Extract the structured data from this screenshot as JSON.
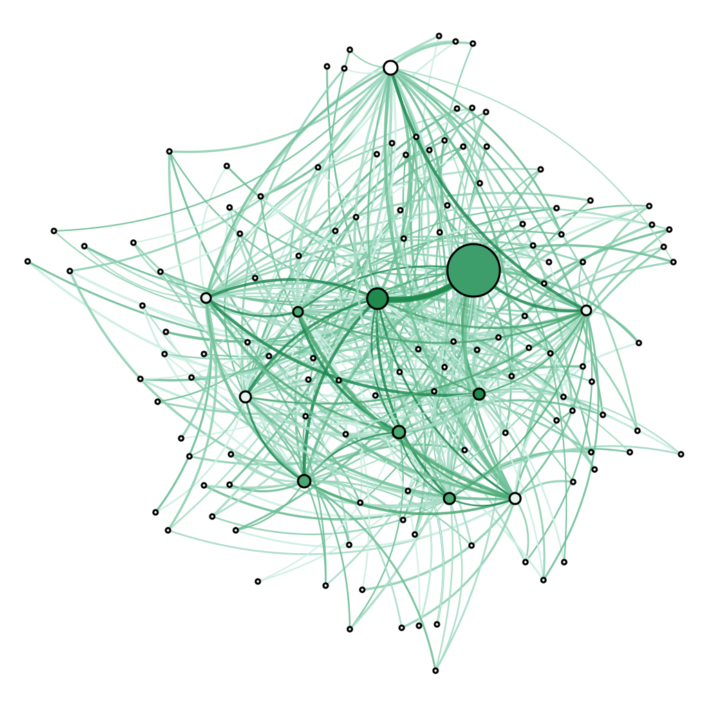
{
  "figure": {
    "type": "network-graph",
    "description_visible_text": "",
    "colors": {
      "background": "#ffffff",
      "node_outline": "#000000",
      "edge_light": "#cdeee3",
      "edge_mid": "#8fd0b3",
      "edge_dark": "#1f8a52",
      "hub_fill": "#3e9e6b",
      "node_fill_dark": "#1f8a4c",
      "node_fill_mid": "#4aa872",
      "node_fill_light": "#e8f6ef",
      "node_fill_white": "#ffffff"
    },
    "legend": null,
    "title": null
  }
}
